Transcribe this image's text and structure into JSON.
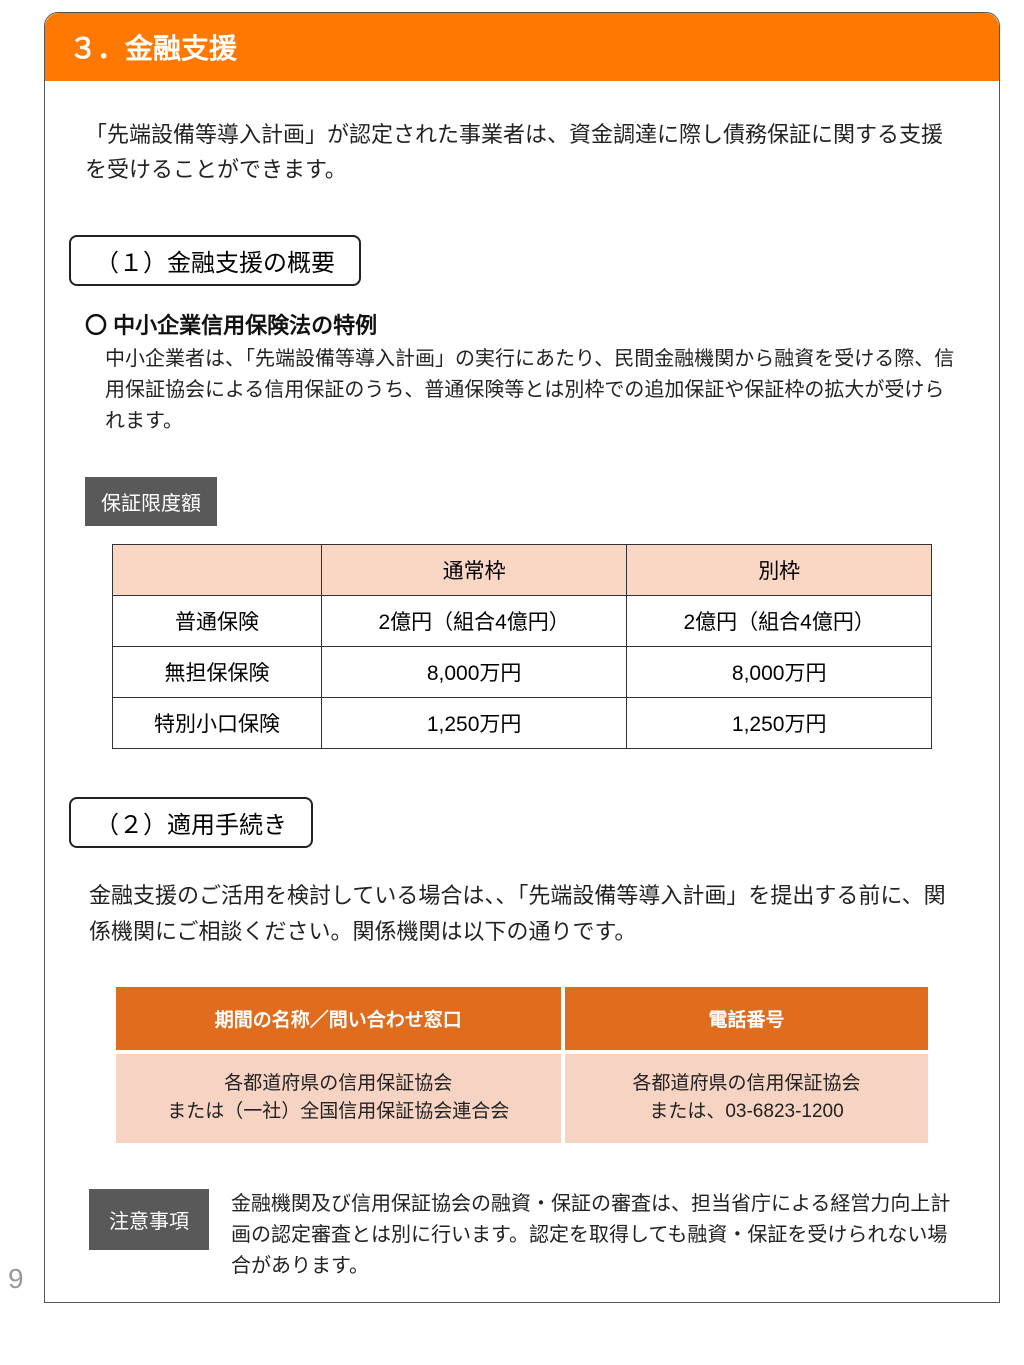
{
  "colors": {
    "title_bg": "#ff7800",
    "title_fg": "#ffffff",
    "tag_bg": "#595959",
    "limits_header_bg": "#f9d7c4",
    "contact_header_bg": "#e06c1e",
    "contact_cell_bg": "#f6d3c2",
    "border": "#333333",
    "text": "#222222",
    "page_num": "#999999"
  },
  "typography": {
    "title_fontsize": 28,
    "intro_fontsize": 22,
    "subhead_fontsize": 24,
    "body_fontsize": 20
  },
  "title": "３．金融支援",
  "intro": "「先端設備等導入計画」が認定された事業者は、資金調達に際し債務保証に関する支援を受けることができます。",
  "section1": {
    "heading": "（１）金融支援の概要",
    "bullet_heading": "〇 中小企業信用保険法の特例",
    "body": "中小企業者は、「先端設備等導入計画」の実行にあたり、民間金融機関から融資を受ける際、信用保証協会による信用保証のうち、普通保険等とは別枠での追加保証や保証枠の拡大が受けられます。",
    "tag": "保証限度額",
    "table": {
      "type": "table",
      "columns": [
        "",
        "通常枠",
        "別枠"
      ],
      "rows": [
        [
          "普通保険",
          "2億円（組合4億円）",
          "2億円（組合4億円）"
        ],
        [
          "無担保保険",
          "8,000万円",
          "8,000万円"
        ],
        [
          "特別小口保険",
          "1,250万円",
          "1,250万円"
        ]
      ]
    }
  },
  "section2": {
    "heading": "（２）適用手続き",
    "body": "金融支援のご活用を検討している場合は、、「先端設備等導入計画」を提出する前に、関係機関にご相談ください。関係機関は以下の通りです。",
    "table": {
      "type": "table",
      "columns": [
        "期間の名称／問い合わせ窓口",
        "電話番号"
      ],
      "rows": [
        [
          "各都道府県の信用保証協会\nまたは（一社）全国信用保証協会連合会",
          "各都道府県の信用保証協会\nまたは、03-6823-1200"
        ]
      ]
    }
  },
  "notice": {
    "tag": "注意事項",
    "text": "金融機関及び信用保証協会の融資・保証の審査は、担当省庁による経営力向上計画の認定審査とは別に行います。認定を取得しても融資・保証を受けられない場合があります。"
  },
  "page_number": "9"
}
